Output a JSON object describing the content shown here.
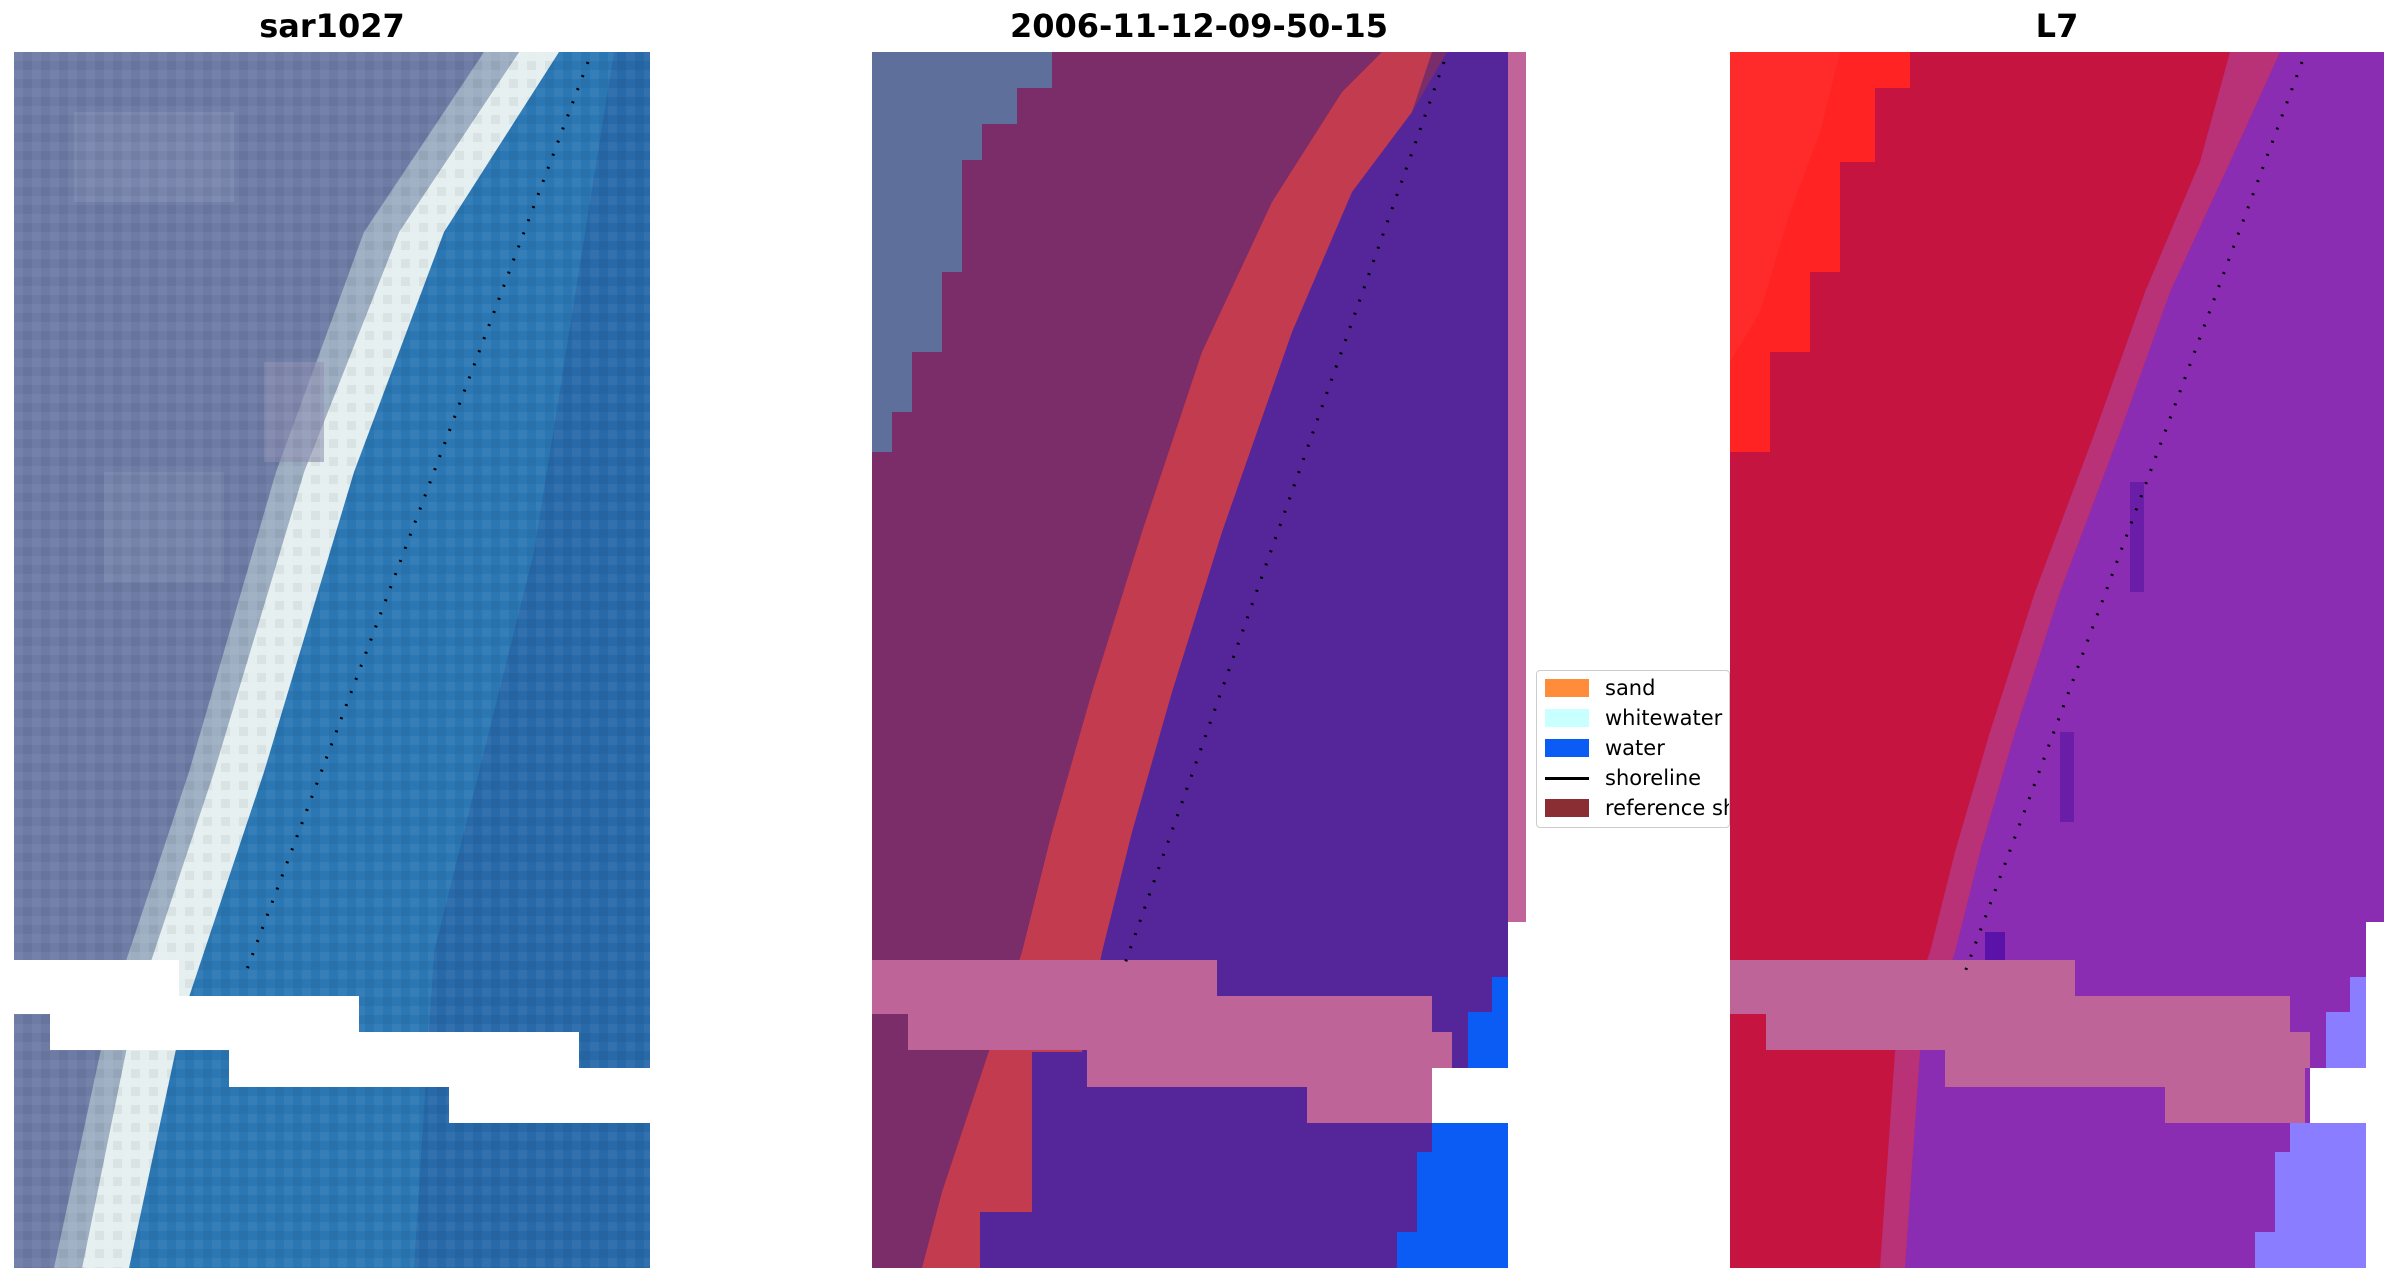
{
  "panels": {
    "left_title": "sar1027",
    "center_title": "2006-11-12-09-50-15",
    "right_title": "L7"
  },
  "legend": {
    "items": [
      {
        "label": "sand",
        "color": "#ff8c3a",
        "type": "patch"
      },
      {
        "label": "whitewater",
        "color": "#c8ffff",
        "type": "patch"
      },
      {
        "label": "water",
        "color": "#0a5cf5",
        "type": "patch"
      },
      {
        "label": "shoreline",
        "color": "#000000",
        "type": "line"
      },
      {
        "label": "reference shoreline",
        "color": "#8b2e33",
        "type": "patch"
      }
    ]
  },
  "colors": {
    "land_rgb": "#6c7aa3",
    "sea_rgb": "#2a78b4",
    "surf_rgb": "#e8f0f0",
    "land_classified": "#7b2d6a",
    "water_classified": "#552497",
    "reference_buffer": "#c23c4f",
    "nodata_pink": "#bf6496",
    "land_ndwi": "#c2143f",
    "water_ndwi": "#8a2cb0",
    "bright_red": "#ff2020"
  }
}
